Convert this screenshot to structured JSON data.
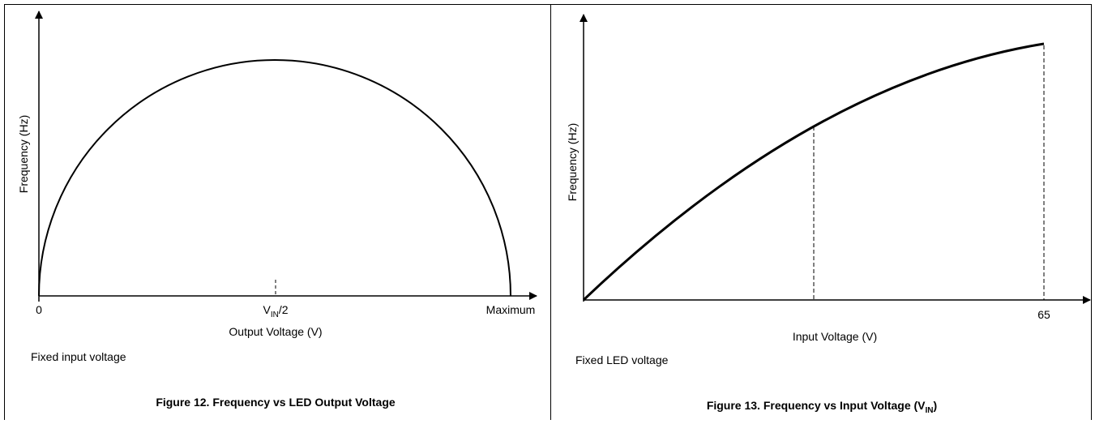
{
  "left": {
    "y_label": "Frequency (Hz)",
    "x_start": "0",
    "x_mid": {
      "main": "V",
      "sub": "IN",
      "rest": "/2"
    },
    "x_end": "Maximum",
    "x_label": "Output Voltage (V)",
    "note": "Fixed input voltage",
    "caption": "Figure 12. Frequency vs LED Output Voltage"
  },
  "right": {
    "y_label": "Frequency (Hz)",
    "x_end": "65",
    "x_label": "Input Voltage (V)",
    "note": "Fixed LED voltage",
    "caption": {
      "main": "Figure 13. Frequency vs Input Voltage (V",
      "sub": "IN",
      "rest": ")"
    }
  }
}
